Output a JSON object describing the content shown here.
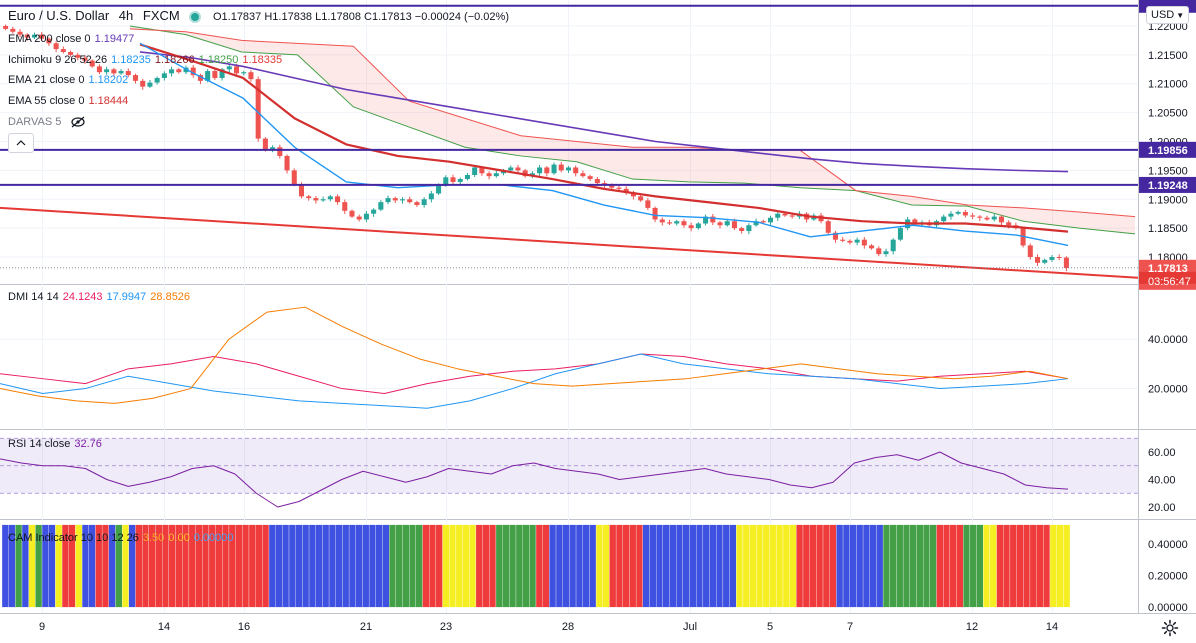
{
  "header": {
    "symbol": "Euro / U.S. Dollar",
    "timeframe": "4h",
    "exchange": "FXCM",
    "ohlc": "O1.17837 H1.17838 L1.17808 C1.17813 −0.00024 (−0.02%)",
    "currency_button": "USD",
    "colors": {
      "up": "#26a69a",
      "down": "#ef5350"
    }
  },
  "legends": {
    "ema200": {
      "label": "EMA 200 close 0",
      "value": "1.19477",
      "color": "#673ab7"
    },
    "ichimoku": {
      "label": "Ichimoku 9 26 52 26",
      "values": [
        "1.18235",
        "1.18266",
        "1.18250",
        "1.18335"
      ],
      "colors": [
        "#2196f3",
        "#801922",
        "#43a047",
        "#e53935"
      ]
    },
    "ema21": {
      "label": "EMA 21 close 0",
      "value": "1.18202",
      "color": "#2196f3"
    },
    "ema55": {
      "label": "EMA 55 close 0",
      "value": "1.18444",
      "color": "#d32f2f"
    },
    "darvas": {
      "label": "DARVAS 5"
    },
    "dmi": {
      "label": "DMI 14 14",
      "values": [
        "24.1243",
        "17.9947",
        "28.8526"
      ],
      "colors": [
        "#e91e63",
        "#2196f3",
        "#f57c00"
      ]
    },
    "rsi": {
      "label": "RSI 14 close",
      "value": "32.76",
      "color": "#7b1fa2"
    },
    "cam": {
      "label": "CAM Indicator 10 10 12 26",
      "values": [
        "3.50",
        "0.00",
        "0.00000"
      ]
    }
  },
  "price_axis": {
    "ticks": [
      "1.22000",
      "1.21500",
      "1.21000",
      "1.20500",
      "1.20000",
      "1.19500",
      "1.19000",
      "1.18500",
      "1.18000"
    ],
    "level_labels": [
      "1.19856",
      "1.19248"
    ],
    "current_price": "1.17813",
    "countdown": "03:56:47"
  },
  "dmi_axis": {
    "ticks": [
      "40.0000",
      "20.0000"
    ]
  },
  "rsi_axis": {
    "ticks": [
      "60.00",
      "40.00",
      "20.00"
    ]
  },
  "cam_axis": {
    "ticks": [
      "0.40000",
      "0.20000",
      "0.00000"
    ]
  },
  "time_axis": {
    "labels": [
      "9",
      "14",
      "16",
      "21",
      "23",
      "28",
      "Jul",
      "5",
      "7",
      "12",
      "14"
    ]
  },
  "chart_data": {
    "type": "candlestick",
    "symbol": "EURUSD",
    "interval": "4h",
    "ylim": [
      1.1755,
      1.2245
    ],
    "trendlines": [
      {
        "name": "horizontal",
        "y": 1.2235
      },
      {
        "name": "horizontal",
        "y": 1.19856
      },
      {
        "name": "horizontal",
        "y": 1.19248
      },
      {
        "name": "descending",
        "y_start": 1.1885,
        "y_end": 1.1764
      }
    ],
    "closes": [
      1.2195,
      1.219,
      1.2185,
      1.218,
      1.2185,
      1.2178,
      1.217,
      1.216,
      1.2155,
      1.215,
      1.2145,
      1.214,
      1.213,
      1.212,
      1.2125,
      1.2118,
      1.2122,
      1.2115,
      1.2105,
      1.2095,
      1.2102,
      1.211,
      1.2118,
      1.2125,
      1.212,
      1.2128,
      1.2115,
      1.2105,
      1.2122,
      1.211,
      1.2125,
      1.213,
      1.2118,
      1.212,
      1.2108,
      1.2005,
      1.1985,
      1.199,
      1.1975,
      1.195,
      1.1925,
      1.1905,
      1.1902,
      1.1898,
      1.19,
      1.1905,
      1.1895,
      1.188,
      1.187,
      1.1865,
      1.1875,
      1.1882,
      1.1895,
      1.1902,
      1.1898,
      1.19,
      1.1895,
      1.189,
      1.19,
      1.191,
      1.1925,
      1.1938,
      1.193,
      1.1935,
      1.1942,
      1.1955,
      1.1945,
      1.194,
      1.1945,
      1.195,
      1.1955,
      1.195,
      1.194,
      1.1945,
      1.1955,
      1.1945,
      1.196,
      1.195,
      1.1955,
      1.1945,
      1.194,
      1.1935,
      1.1928,
      1.1925,
      1.192,
      1.1918,
      1.1912,
      1.1905,
      1.1898,
      1.1885,
      1.1865,
      1.186,
      1.1858,
      1.1862,
      1.1855,
      1.185,
      1.1858,
      1.187,
      1.186,
      1.1855,
      1.1862,
      1.185,
      1.1845,
      1.1855,
      1.1862,
      1.186,
      1.1868,
      1.1875,
      1.1872,
      1.187,
      1.1875,
      1.1865,
      1.1872,
      1.1862,
      1.1842,
      1.183,
      1.1828,
      1.1825,
      1.183,
      1.182,
      1.1815,
      1.1805,
      1.181,
      1.183,
      1.185,
      1.1865,
      1.1858,
      1.186,
      1.1855,
      1.1862,
      1.187,
      1.1875,
      1.1878,
      1.1872,
      1.187,
      1.1868,
      1.1865,
      1.187,
      1.186,
      1.1855,
      1.185,
      1.182,
      1.18,
      1.179,
      1.1795,
      1.18,
      1.1799,
      1.1781
    ],
    "ema21": [
      1.217,
      1.212,
      1.2075,
      1.199,
      1.193,
      1.192,
      1.1925,
      1.1925,
      1.1915,
      1.189,
      1.1872,
      1.1868,
      1.186,
      1.1835,
      1.1845,
      1.1855,
      1.1845,
      1.1838,
      1.182
    ],
    "ema55": [
      1.2168,
      1.214,
      1.211,
      1.204,
      1.1995,
      1.1975,
      1.1965,
      1.195,
      1.1935,
      1.1918,
      1.1905,
      1.1895,
      1.1885,
      1.187,
      1.1862,
      1.1858,
      1.1858,
      1.1852,
      1.1844
    ],
    "ema200": [
      1.2155,
      1.2145,
      1.213,
      1.211,
      1.209,
      1.2075,
      1.206,
      1.2045,
      1.203,
      1.2015,
      1.2,
      1.199,
      1.198,
      1.197,
      1.1962,
      1.1957,
      1.1953,
      1.195,
      1.1948
    ],
    "ichimoku_span_a": [
      1.22,
      1.2185,
      1.2155,
      1.215,
      1.206,
      1.2025,
      1.199,
      1.1975,
      1.1965,
      1.1935,
      1.193,
      1.1928,
      1.192,
      1.1915,
      1.189,
      1.1888,
      1.1862,
      1.185,
      1.184
    ],
    "ichimoku_span_b": [
      1.2195,
      1.219,
      1.2175,
      1.217,
      1.2165,
      1.207,
      1.204,
      1.201,
      1.2,
      1.199,
      1.199,
      1.1985,
      1.1985,
      1.1915,
      1.1905,
      1.189,
      1.1885,
      1.1878,
      1.187
    ],
    "dmi_plus": [
      26,
      24,
      22,
      28,
      30,
      33,
      30,
      25,
      20,
      18,
      22,
      25,
      27,
      28,
      30,
      34,
      33,
      30,
      28,
      25,
      24,
      23,
      25,
      26,
      27,
      24
    ],
    "dmi_minus": [
      22,
      18,
      20,
      25,
      22,
      19,
      17,
      15,
      14,
      13,
      12,
      15,
      20,
      26,
      30,
      34,
      30,
      28,
      26,
      25,
      24,
      22,
      20,
      21,
      22,
      24
    ],
    "adx": [
      20,
      17,
      15,
      14,
      16,
      20,
      40,
      51,
      53,
      45,
      38,
      32,
      28,
      25,
      22,
      21,
      22,
      23,
      24,
      26,
      28,
      30,
      28,
      26,
      25,
      24,
      25,
      27,
      24
    ],
    "rsi": [
      55,
      52,
      50,
      50,
      48,
      40,
      35,
      38,
      42,
      48,
      50,
      44,
      30,
      20,
      24,
      32,
      40,
      46,
      42,
      38,
      42,
      48,
      46,
      44,
      50,
      52,
      48,
      46,
      44,
      40,
      42,
      44,
      46,
      48,
      44,
      42,
      40,
      36,
      34,
      38,
      52,
      56,
      58,
      54,
      60,
      52,
      48,
      44,
      36,
      34,
      33
    ],
    "cam_colors": [
      "blue",
      "blue",
      "green",
      "blue",
      "yellow",
      "green",
      "blue",
      "blue",
      "yellow",
      "red",
      "red",
      "yellow",
      "blue",
      "blue",
      "red",
      "red",
      "blue",
      "green",
      "yellow",
      "blue",
      "red",
      "red",
      "red",
      "red",
      "red",
      "red",
      "red",
      "red",
      "red",
      "red",
      "red",
      "red",
      "red",
      "red",
      "red",
      "red",
      "red",
      "red",
      "red",
      "red",
      "blue",
      "blue",
      "blue",
      "blue",
      "blue",
      "blue",
      "blue",
      "blue",
      "blue",
      "blue",
      "blue",
      "blue",
      "blue",
      "blue",
      "blue",
      "blue",
      "blue",
      "blue",
      "green",
      "green",
      "green",
      "green",
      "green",
      "red",
      "red",
      "red",
      "yellow",
      "yellow",
      "yellow",
      "yellow",
      "yellow",
      "red",
      "red",
      "red",
      "green",
      "green",
      "green",
      "green",
      "green",
      "green",
      "red",
      "red",
      "blue",
      "blue",
      "blue",
      "blue",
      "blue",
      "blue",
      "blue",
      "yellow",
      "yellow",
      "red",
      "red",
      "red",
      "red",
      "red",
      "blue",
      "blue",
      "blue",
      "blue",
      "blue",
      "blue",
      "blue",
      "blue",
      "blue",
      "blue",
      "blue",
      "blue",
      "blue",
      "blue",
      "yellow",
      "yellow",
      "yellow",
      "yellow",
      "yellow",
      "yellow",
      "yellow",
      "yellow",
      "yellow",
      "red",
      "red",
      "red",
      "red",
      "red",
      "red",
      "blue",
      "blue",
      "blue",
      "blue",
      "blue",
      "blue",
      "blue",
      "green",
      "green",
      "green",
      "green",
      "green",
      "green",
      "green",
      "green",
      "red",
      "red",
      "red",
      "red",
      "green",
      "green",
      "green",
      "yellow",
      "yellow",
      "red",
      "red",
      "red",
      "red",
      "red",
      "red",
      "red",
      "red",
      "yellow",
      "yellow",
      "yellow"
    ]
  }
}
